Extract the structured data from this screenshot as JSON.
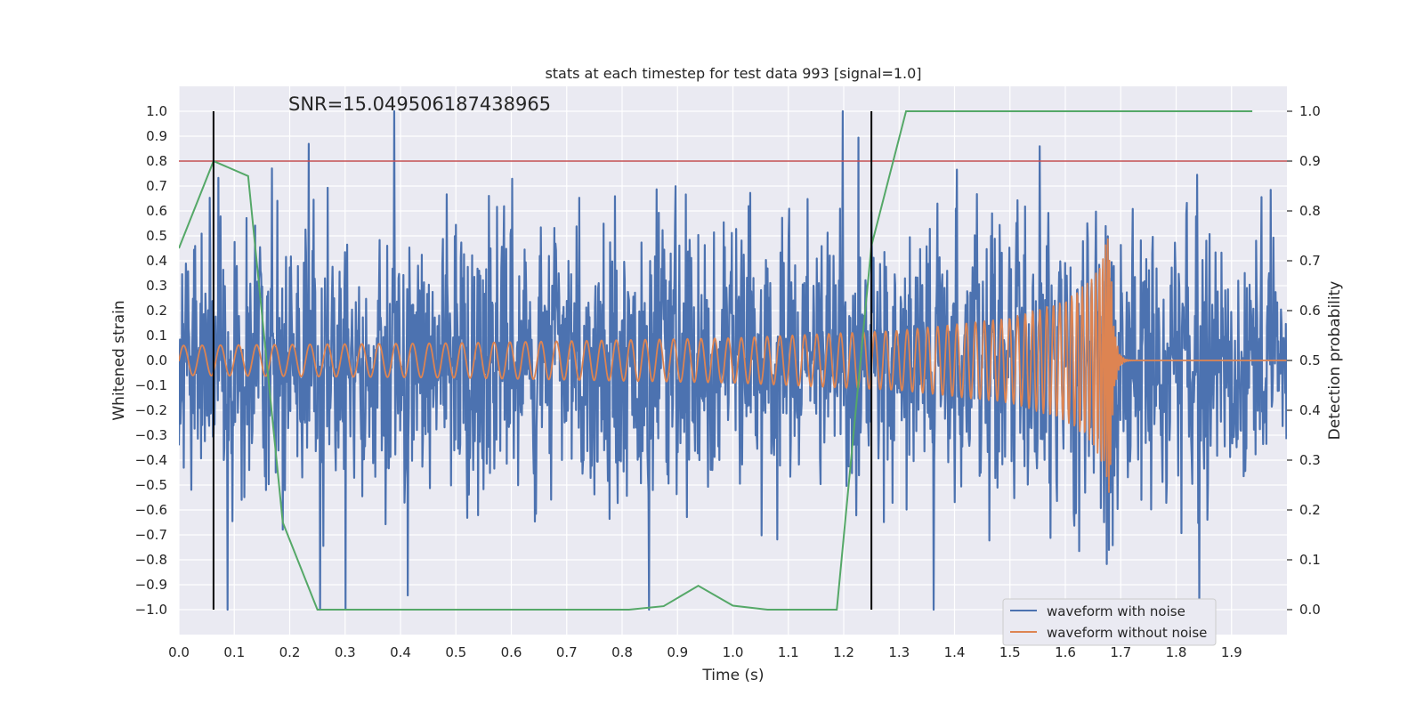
{
  "chart_data": {
    "type": "line",
    "title": "stats at each timestep for test data 993 [signal=1.0]",
    "xlabel": "Time (s)",
    "ylabel": "Whitened strain",
    "y2label": "Detection probability",
    "xlim": [
      0.0,
      2.0
    ],
    "ylim": [
      -1.1,
      1.1
    ],
    "y2lim": [
      -0.05,
      1.05
    ],
    "x_ticks": [
      "0.0",
      "0.1",
      "0.2",
      "0.3",
      "0.4",
      "0.5",
      "0.6",
      "0.7",
      "0.8",
      "0.9",
      "1.0",
      "1.1",
      "1.2",
      "1.3",
      "1.4",
      "1.5",
      "1.6",
      "1.7",
      "1.8",
      "1.9"
    ],
    "y_ticks": [
      "1.0",
      "0.9",
      "0.8",
      "0.7",
      "0.6",
      "0.5",
      "0.4",
      "0.3",
      "0.2",
      "0.1",
      "0.0",
      "−0.1",
      "−0.2",
      "−0.3",
      "−0.4",
      "−0.5",
      "−0.6",
      "−0.7",
      "−0.8",
      "−0.9",
      "−1.0"
    ],
    "y2_ticks": [
      "1.0",
      "0.9",
      "0.8",
      "0.7",
      "0.6",
      "0.5",
      "0.4",
      "0.3",
      "0.2",
      "0.1",
      "0.0"
    ],
    "annotation": "SNR=15.049506187438965",
    "threshold": {
      "y": 0.8,
      "color": "#c44e52"
    },
    "vertical_markers": [
      0.0625,
      1.25
    ],
    "legend": {
      "position": "lower-right",
      "entries": [
        "waveform with noise",
        "waveform without noise"
      ]
    },
    "noisy_waveform": {
      "name": "waveform with noise",
      "color": "#4c72b0",
      "samples": 2048,
      "approx_std": 0.3
    },
    "clean_waveform": {
      "name": "waveform without noise",
      "color": "#dd8452",
      "merger_time": 1.68,
      "peak_amplitude": 0.56,
      "x": [
        0.0,
        0.5,
        1.0,
        1.3,
        1.5,
        1.6,
        1.65,
        1.675,
        1.68
      ],
      "envelope": [
        0.06,
        0.07,
        0.09,
        0.12,
        0.17,
        0.24,
        0.33,
        0.48,
        0.56
      ]
    },
    "probability_series": {
      "name": "detection probability",
      "color": "#55a868",
      "x": [
        0.0,
        0.0625,
        0.125,
        0.1875,
        0.25,
        0.3125,
        0.375,
        0.4375,
        0.5,
        0.5625,
        0.625,
        0.6875,
        0.75,
        0.8125,
        0.875,
        0.9375,
        1.0,
        1.0625,
        1.125,
        1.1875,
        1.25,
        1.3125,
        1.375,
        1.4375,
        1.5,
        1.5625,
        1.625,
        1.6875,
        1.75,
        1.8125,
        1.875,
        1.9375
      ],
      "y": [
        0.725,
        0.9,
        0.87,
        0.175,
        0.0,
        0.0,
        0.0,
        0.0,
        0.0,
        0.0,
        0.0,
        0.0,
        0.0,
        0.0,
        0.007,
        0.048,
        0.008,
        0.0,
        0.0,
        0.0,
        0.73,
        1.0,
        1.0,
        1.0,
        1.0,
        1.0,
        1.0,
        1.0,
        1.0,
        1.0,
        1.0,
        1.0
      ]
    }
  }
}
